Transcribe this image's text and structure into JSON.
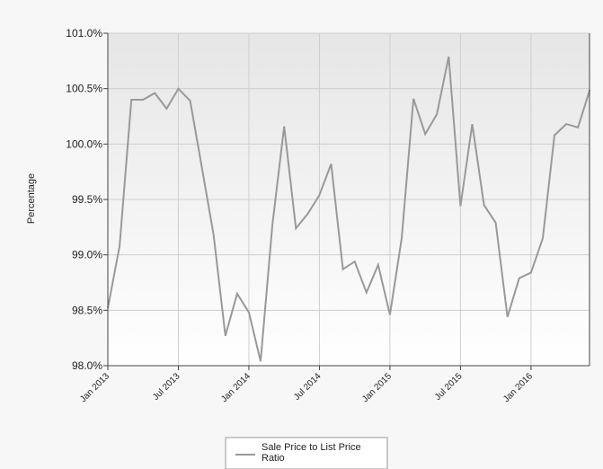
{
  "chart_data": {
    "type": "line",
    "title": "",
    "xlabel": "",
    "ylabel": "Percentage",
    "ylim": [
      98.0,
      101.0
    ],
    "y_ticks": [
      "98.0%",
      "98.5%",
      "99.0%",
      "99.5%",
      "100.0%",
      "100.5%",
      "101.0%"
    ],
    "x_ticks": [
      "Jan 2013",
      "Jul 2013",
      "Jan 2014",
      "Jul 2014",
      "Jan 2015",
      "Jul 2015",
      "Jan 2016"
    ],
    "grid": true,
    "legend_position": "bottom",
    "series_color": "#999999",
    "x": [
      "2013-01",
      "2013-02",
      "2013-03",
      "2013-04",
      "2013-05",
      "2013-06",
      "2013-07",
      "2013-08",
      "2013-09",
      "2013-10",
      "2013-11",
      "2013-12",
      "2014-01",
      "2014-02",
      "2014-03",
      "2014-04",
      "2014-05",
      "2014-06",
      "2014-07",
      "2014-08",
      "2014-09",
      "2014-10",
      "2014-11",
      "2014-12",
      "2015-01",
      "2015-02",
      "2015-03",
      "2015-04",
      "2015-05",
      "2015-06",
      "2015-07",
      "2015-08",
      "2015-09",
      "2015-10",
      "2015-11",
      "2015-12",
      "2016-01",
      "2016-02",
      "2016-03",
      "2016-04",
      "2016-05",
      "2016-06"
    ],
    "series": [
      {
        "name": "Sale Price to List Price Ratio",
        "values": [
          98.52,
          99.08,
          100.4,
          100.4,
          100.46,
          100.32,
          100.5,
          100.39,
          99.79,
          99.18,
          98.27,
          98.65,
          98.48,
          98.04,
          99.27,
          100.16,
          99.24,
          99.37,
          99.54,
          99.82,
          98.87,
          98.94,
          98.66,
          98.91,
          98.46,
          99.15,
          100.41,
          100.09,
          100.27,
          100.79,
          99.44,
          100.18,
          99.45,
          99.29,
          98.44,
          98.79,
          98.84,
          99.15,
          100.08,
          100.18,
          100.15,
          100.49
        ]
      }
    ]
  }
}
